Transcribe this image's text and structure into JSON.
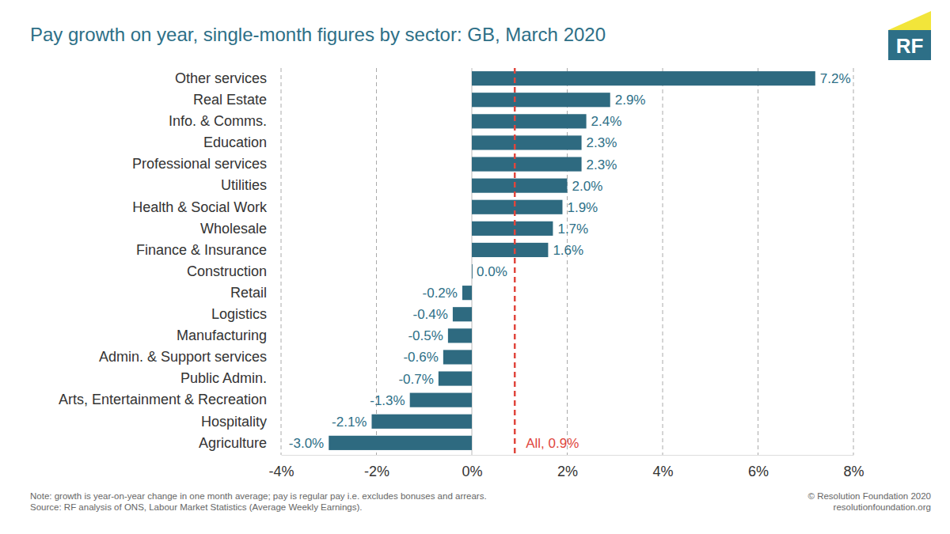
{
  "chart_data": {
    "type": "bar",
    "orientation": "horizontal",
    "title": "Pay growth on year, single-month figures by sector: GB, March 2020",
    "categories": [
      "Other services",
      "Real Estate",
      "Info. & Comms.",
      "Education",
      "Professional services",
      "Utilities",
      "Health & Social Work",
      "Wholesale",
      "Finance & Insurance",
      "Construction",
      "Retail",
      "Logistics",
      "Manufacturing",
      "Admin. & Support services",
      "Public Admin.",
      "Arts, Entertainment & Recreation",
      "Hospitality",
      "Agriculture"
    ],
    "values": [
      7.2,
      2.9,
      2.4,
      2.3,
      2.3,
      2.0,
      1.9,
      1.7,
      1.6,
      0.0,
      -0.2,
      -0.4,
      -0.5,
      -0.6,
      -0.7,
      -1.3,
      -2.1,
      -3.0
    ],
    "value_labels": [
      "7.2%",
      "2.9%",
      "2.4%",
      "2.3%",
      "2.3%",
      "2.0%",
      "1.9%",
      "1.7%",
      "1.6%",
      "0.0%",
      "-0.2%",
      "-0.4%",
      "-0.5%",
      "-0.6%",
      "-0.7%",
      "-1.3%",
      "-2.1%",
      "-3.0%"
    ],
    "color": "#2e6a80",
    "data_labels": true,
    "xlim": [
      -4,
      8
    ],
    "xticks": [
      {
        "value": -4,
        "label": "-4%"
      },
      {
        "value": -2,
        "label": "-2%"
      },
      {
        "value": 0,
        "label": "0%"
      },
      {
        "value": 2,
        "label": "2%"
      },
      {
        "value": 4,
        "label": "4%"
      },
      {
        "value": 6,
        "label": "6%"
      },
      {
        "value": 8,
        "label": "8%"
      }
    ],
    "grid": true,
    "annotations": [
      {
        "text": "All, 0.9%",
        "x": 0.9,
        "color": "#e0453c"
      }
    ],
    "notes": [
      "Note: growth is year-on-year change in one month average; pay is regular pay i.e. excludes bonuses and arrears.",
      "Source: RF analysis of ONS, Labour Market Statistics (Average Weekly Earnings)."
    ],
    "credits": [
      "© Resolution Foundation 2020",
      "resolutionfoundation.org"
    ],
    "logo": "RF"
  }
}
